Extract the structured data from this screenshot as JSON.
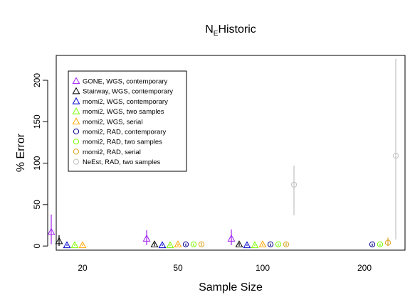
{
  "chart_data": {
    "type": "scatter",
    "title_main": "N",
    "title_sub": "E",
    "title_rest": "Historic",
    "xlabel": "Sample Size",
    "ylabel": "% Error",
    "categories": [
      "20",
      "50",
      "100",
      "200"
    ],
    "ylim": [
      -5,
      230
    ],
    "yticks": [
      0,
      50,
      100,
      150,
      200
    ],
    "grid": false,
    "legend_position": "top-left",
    "series": [
      {
        "name": "GONE, WGS, contemporary",
        "marker": "triangle",
        "color": "#A020F0",
        "points": [
          {
            "cat": "20",
            "y": 17,
            "lo": 2,
            "hi": 38
          },
          {
            "cat": "50",
            "y": 9,
            "lo": 1,
            "hi": 19
          },
          {
            "cat": "100",
            "y": 9,
            "lo": 1,
            "hi": 20
          }
        ]
      },
      {
        "name": "Stairway, WGS, contemporary",
        "marker": "triangle",
        "color": "#000000",
        "points": [
          {
            "cat": "20",
            "y": 6,
            "lo": 0,
            "hi": 13
          },
          {
            "cat": "50",
            "y": 2,
            "lo": 0,
            "hi": 4
          },
          {
            "cat": "100",
            "y": 2,
            "lo": 0,
            "hi": 4
          }
        ]
      },
      {
        "name": "momi2, WGS, contemporary",
        "marker": "triangle",
        "color": "#0000CD",
        "points": [
          {
            "cat": "20",
            "y": 1,
            "lo": 0,
            "hi": 2
          },
          {
            "cat": "50",
            "y": 1,
            "lo": 0,
            "hi": 2
          },
          {
            "cat": "100",
            "y": 1,
            "lo": 0,
            "hi": 2
          }
        ]
      },
      {
        "name": "momi2, WGS, two samples",
        "marker": "triangle",
        "color": "#7CFC00",
        "points": [
          {
            "cat": "20",
            "y": 1,
            "lo": 0,
            "hi": 2
          },
          {
            "cat": "50",
            "y": 1,
            "lo": 0,
            "hi": 2
          },
          {
            "cat": "100",
            "y": 1,
            "lo": 0,
            "hi": 2
          }
        ]
      },
      {
        "name": "momi2, WGS, serial",
        "marker": "triangle",
        "color": "#FFA500",
        "points": [
          {
            "cat": "20",
            "y": 1,
            "lo": 0,
            "hi": 2
          },
          {
            "cat": "50",
            "y": 2,
            "lo": 0,
            "hi": 3
          },
          {
            "cat": "100",
            "y": 2,
            "lo": 0,
            "hi": 3
          }
        ]
      },
      {
        "name": "momi2, RAD, contemporary",
        "marker": "circle",
        "color": "#00008B",
        "points": [
          {
            "cat": "50",
            "y": 2,
            "lo": 0,
            "hi": 3
          },
          {
            "cat": "100",
            "y": 2,
            "lo": 0,
            "hi": 3
          },
          {
            "cat": "200",
            "y": 2,
            "lo": 0,
            "hi": 3
          }
        ]
      },
      {
        "name": "momi2, RAD, two samples",
        "marker": "circle",
        "color": "#7CFC00",
        "points": [
          {
            "cat": "50",
            "y": 2,
            "lo": 0,
            "hi": 3
          },
          {
            "cat": "100",
            "y": 2,
            "lo": 0,
            "hi": 3
          },
          {
            "cat": "200",
            "y": 2,
            "lo": 0,
            "hi": 3
          }
        ]
      },
      {
        "name": "momi2, RAD, serial",
        "marker": "circle",
        "color": "#DAA520",
        "points": [
          {
            "cat": "50",
            "y": 2,
            "lo": 0,
            "hi": 4
          },
          {
            "cat": "100",
            "y": 2,
            "lo": 0,
            "hi": 4
          },
          {
            "cat": "200",
            "y": 4,
            "lo": 0,
            "hi": 10
          }
        ]
      },
      {
        "name": "NeEst, RAD, two samples",
        "marker": "circle",
        "color": "#C0C0C0",
        "points": [
          {
            "cat": "100",
            "y": 74,
            "lo": 37,
            "hi": 97
          },
          {
            "cat": "200",
            "y": 109,
            "lo": 8,
            "hi": 226
          }
        ]
      }
    ]
  }
}
